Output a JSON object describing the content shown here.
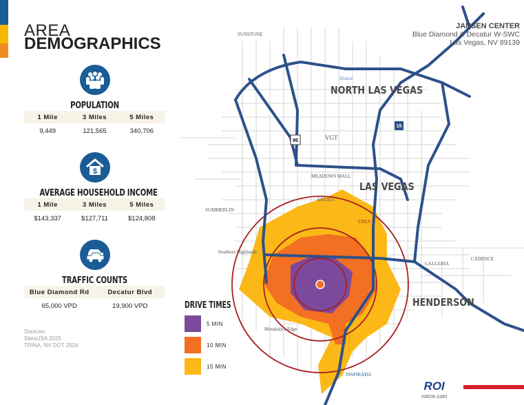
{
  "title": {
    "line1": "AREA",
    "line2": "DEMOGRAPHICS"
  },
  "brand_colors": {
    "blue": "#1a5c96",
    "yellow": "#f5b800",
    "orange": "#f08a24",
    "red": "#d6202b"
  },
  "population": {
    "icon": "people-icon",
    "title": "POPULATION",
    "headers": [
      "1 Mile",
      "3 Miles",
      "5 Miles"
    ],
    "values": [
      "9,449",
      "121,565",
      "340,706"
    ]
  },
  "income": {
    "icon": "house-dollar-icon",
    "title": "AVERAGE HOUSEHOLD INCOME",
    "headers": [
      "1 Mile",
      "3 Miles",
      "5 Miles"
    ],
    "values": [
      "$143,337",
      "$127,711",
      "$124,808"
    ]
  },
  "traffic": {
    "icon": "cars-icon",
    "title": "TRAFFIC COUNTS",
    "headers": [
      "Blue Diamond Rd",
      "Decatur Blvd"
    ],
    "values": [
      "65,000 VPD",
      "19,900 VPD"
    ]
  },
  "sources": [
    "Sources:",
    "SitesUSA 2025",
    "TRINA, NV DOT 2024"
  ],
  "property": {
    "name": "JANSEN CENTER",
    "line1": "Blue Diamond & Decatur W-SWC",
    "line2": "Las Vegas, NV 89139"
  },
  "map": {
    "cities": [
      "NORTH LAS VEGAS",
      "LAS VEGAS",
      "HENDERSON"
    ],
    "places": [
      "SUNSTONE",
      "Aliante",
      "SUMMERLIN",
      "GALLERIA",
      "CADENCE",
      "INSPIRADA",
      "AREA15",
      "UNLV",
      "Southern Highlands",
      "Mountain's Edge",
      "MEADOWS MALL",
      "VGT"
    ],
    "highways": [
      "95",
      "15"
    ]
  },
  "legend": {
    "title": "DRIVE TIMES",
    "items": [
      {
        "label": "5 MIN",
        "color": "#7b4a9c"
      },
      {
        "label": "10 MIN",
        "color": "#f36f21"
      },
      {
        "label": "15 MIN",
        "color": "#fbb817"
      }
    ]
  },
  "footer": {
    "logo": "ROI",
    "url": "roicre.com"
  }
}
